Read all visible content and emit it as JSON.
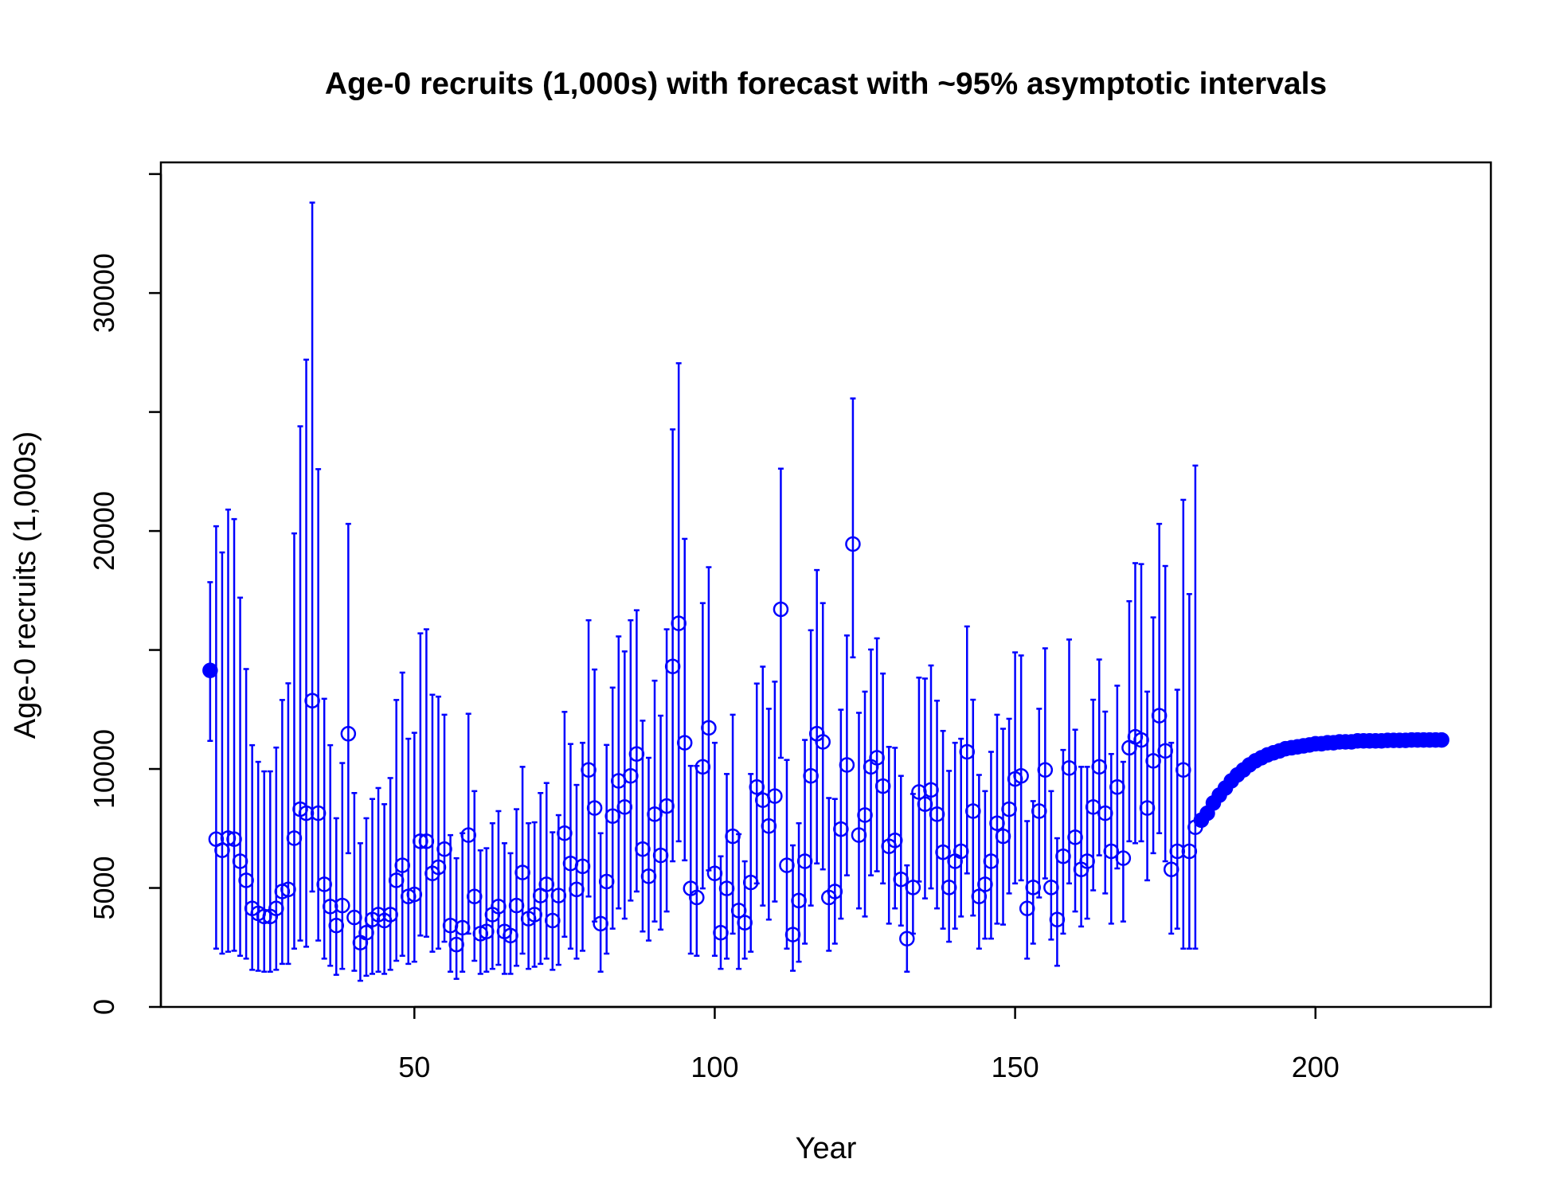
{
  "chart_data": {
    "type": "scatter",
    "title": "Age-0 recruits (1,000s) with forecast with ~95% asymptotic intervals",
    "xlabel": "Year",
    "ylabel": "Age-0 recruits (1,000s)",
    "xlim": [
      7.8,
      229.2
    ],
    "xticks": [
      50,
      100,
      150,
      200
    ],
    "ylim": [
      0,
      35490
    ],
    "yticks": [
      0,
      5000,
      10000,
      20000,
      30000
    ],
    "yticks_unlabeled": [
      15000,
      25000,
      35000
    ],
    "series": [
      {
        "color": "#0000ff",
        "marker": "filled",
        "x": [
          16
        ],
        "values": [
          14140
        ],
        "lower": [
          11180
        ],
        "upper": [
          17850
        ]
      },
      {
        "color": "#0000ff",
        "marker": "open",
        "x": [
          17,
          18,
          19,
          20,
          21,
          22,
          23,
          24,
          25,
          26,
          27,
          28,
          29,
          30,
          31,
          32,
          33,
          34,
          35,
          36,
          37,
          38,
          39,
          40,
          41,
          42,
          43,
          44,
          45,
          46,
          47,
          48,
          49,
          50,
          51,
          52,
          53,
          54,
          55,
          56,
          57,
          58,
          59,
          60,
          61,
          62,
          63,
          64,
          65,
          66,
          67,
          68,
          69,
          70,
          71,
          72,
          73,
          74,
          75,
          76,
          77,
          78,
          79,
          80,
          81,
          82,
          83,
          84,
          85,
          86,
          87,
          88,
          89,
          90,
          91,
          92,
          93,
          94,
          95,
          96,
          97,
          98,
          99,
          100,
          101,
          102,
          103,
          104,
          105,
          106,
          107,
          108,
          109,
          110,
          111,
          112,
          113,
          114,
          115,
          116,
          117,
          118,
          119,
          120,
          121,
          122,
          123,
          124,
          125,
          126,
          127,
          128,
          129,
          130,
          131,
          132,
          133,
          134,
          135,
          136,
          137,
          138,
          139,
          140,
          141,
          142,
          143,
          144,
          145,
          146,
          147,
          148,
          149,
          150,
          151,
          152,
          153,
          154,
          155,
          156,
          157,
          158,
          159,
          160,
          161,
          162,
          163,
          164,
          165,
          166,
          167,
          168,
          169,
          170,
          171,
          172,
          173,
          174,
          175,
          176,
          177,
          178,
          179,
          180
        ],
        "values": [
          7050,
          6580,
          7090,
          7050,
          6120,
          5320,
          4140,
          3930,
          3800,
          3800,
          4140,
          4850,
          4940,
          7090,
          8310,
          8140,
          12870,
          8140,
          5150,
          4220,
          3420,
          4260,
          11480,
          3760,
          2700,
          3120,
          3670,
          3880,
          3630,
          3880,
          5320,
          5950,
          4640,
          4730,
          6960,
          6960,
          5610,
          5870,
          6630,
          3420,
          2620,
          3330,
          7220,
          4640,
          3080,
          3170,
          3880,
          4220,
          3170,
          3000,
          4260,
          5650,
          3710,
          3880,
          4680,
          5150,
          3630,
          4680,
          7300,
          6030,
          4940,
          5910,
          9960,
          8360,
          3500,
          5270,
          8020,
          9500,
          8400,
          9710,
          10630,
          6630,
          5490,
          8100,
          6370,
          8440,
          14310,
          16120,
          11100,
          4980,
          4600,
          10090,
          11730,
          5610,
          3120,
          4980,
          7170,
          4050,
          3540,
          5230,
          9240,
          8690,
          7600,
          8860,
          16710,
          5950,
          3040,
          4470,
          6120,
          9710,
          11480,
          11140,
          4600,
          4850,
          7470,
          10170,
          19450,
          7220,
          8060,
          10090,
          10470,
          9280,
          6750,
          7000,
          5360,
          2870,
          5020,
          9030,
          8520,
          9120,
          8100,
          6500,
          5020,
          6120,
          6540,
          10720,
          8230,
          4640,
          5150,
          6120,
          7720,
          7170,
          8310,
          9580,
          9710,
          4140,
          5020,
          8230,
          9960,
          5020,
          3670,
          6330,
          10040,
          7130,
          5780,
          6120,
          8400,
          10090,
          8140,
          6540,
          9240,
          6250,
          10890,
          11350,
          11220,
          8360,
          10340,
          12240,
          10760,
          5780,
          6540,
          9960,
          6540,
          7550
        ],
        "lower": [
          2450,
          2240,
          2320,
          2360,
          2150,
          2030,
          1560,
          1520,
          1480,
          1480,
          1560,
          1810,
          1810,
          2450,
          2790,
          2530,
          4850,
          2790,
          2030,
          1730,
          1350,
          1600,
          6460,
          1520,
          1100,
          1310,
          1390,
          1480,
          1390,
          1560,
          1940,
          2150,
          1810,
          1900,
          3000,
          2950,
          2320,
          2450,
          2740,
          1480,
          1180,
          1480,
          3080,
          1940,
          1390,
          1480,
          1600,
          1770,
          1390,
          1390,
          1730,
          2240,
          1600,
          1690,
          1810,
          2030,
          1560,
          1770,
          2950,
          2450,
          2030,
          2360,
          4640,
          3590,
          1480,
          2240,
          3290,
          4140,
          3710,
          4470,
          4850,
          3170,
          2790,
          3590,
          3250,
          4010,
          6120,
          6960,
          6160,
          2240,
          2150,
          4980,
          5740,
          2150,
          1600,
          2030,
          3080,
          1600,
          2030,
          2320,
          5190,
          4260,
          3670,
          4430,
          10470,
          2450,
          1520,
          1900,
          2660,
          4260,
          6030,
          5780,
          2360,
          2660,
          3710,
          5530,
          14690,
          4140,
          3800,
          5530,
          5700,
          5190,
          3500,
          4140,
          3420,
          1480,
          3080,
          5270,
          4560,
          4980,
          4140,
          3290,
          2740,
          3290,
          3800,
          5610,
          3840,
          2450,
          2870,
          2870,
          3500,
          3460,
          4770,
          5190,
          5320,
          2030,
          2660,
          4600,
          5400,
          2830,
          1730,
          3080,
          5190,
          4010,
          3380,
          3710,
          4900,
          6370,
          4770,
          3500,
          5820,
          3590,
          6960,
          6880,
          6960,
          5320,
          6460,
          7300,
          6120,
          3080,
          3290,
          2450,
          2450,
          2450
        ],
        "upper": [
          20200,
          19100,
          20900,
          20500,
          17200,
          14200,
          11000,
          10300,
          9900,
          9900,
          10900,
          12900,
          13600,
          19900,
          24400,
          27200,
          33800,
          22600,
          12950,
          11000,
          7930,
          10250,
          20300,
          8990,
          6880,
          7930,
          8740,
          9200,
          8520,
          9620,
          12900,
          14050,
          11270,
          11520,
          15700,
          15870,
          13120,
          13040,
          12280,
          7220,
          6250,
          7300,
          12320,
          9070,
          6580,
          6670,
          7720,
          8230,
          6880,
          6460,
          8310,
          10090,
          7720,
          7760,
          8990,
          9410,
          7340,
          8060,
          12400,
          11050,
          9330,
          11100,
          16250,
          14180,
          7300,
          11010,
          13420,
          15570,
          14940,
          16250,
          16670,
          12030,
          10470,
          13710,
          12240,
          15870,
          24270,
          27050,
          19670,
          10130,
          10130,
          16970,
          18480,
          11100,
          6330,
          9790,
          12280,
          7260,
          6120,
          9790,
          13590,
          14300,
          12530,
          13670,
          22620,
          10380,
          6790,
          7720,
          11220,
          15830,
          18360,
          16970,
          8780,
          8740,
          12490,
          15610,
          25570,
          12360,
          13250,
          15020,
          15490,
          14010,
          10930,
          10890,
          9710,
          5950,
          8950,
          13840,
          13800,
          14350,
          12870,
          11600,
          9920,
          11100,
          11270,
          15990,
          12910,
          9750,
          9070,
          10720,
          12280,
          11690,
          12110,
          14900,
          14770,
          7810,
          8650,
          12530,
          15070,
          9070,
          7090,
          10800,
          15440,
          11650,
          10090,
          10090,
          12910,
          14600,
          12410,
          10630,
          13500,
          10300,
          17050,
          18650,
          18610,
          13250,
          16370,
          20300,
          18530,
          11100,
          13330,
          21310,
          17350,
          22750
        ]
      },
      {
        "color": "#0000ff",
        "marker": "filled",
        "x": [
          181,
          182,
          183,
          184,
          185,
          186,
          187,
          188,
          189,
          190,
          191,
          192,
          193,
          194,
          195,
          196,
          197,
          198,
          199,
          200,
          201,
          202,
          203,
          204,
          205,
          206,
          207,
          208,
          209,
          210,
          211,
          212,
          213,
          214,
          215,
          216,
          217,
          218,
          219,
          220,
          221
        ],
        "values": [
          7850,
          8140,
          8570,
          8900,
          9200,
          9500,
          9750,
          9960,
          10170,
          10340,
          10470,
          10590,
          10680,
          10760,
          10850,
          10890,
          10930,
          10970,
          11010,
          11060,
          11060,
          11100,
          11100,
          11140,
          11140,
          11140,
          11180,
          11180,
          11180,
          11180,
          11180,
          11200,
          11200,
          11200,
          11200,
          11220,
          11220,
          11220,
          11220,
          11220,
          11220
        ]
      }
    ]
  }
}
